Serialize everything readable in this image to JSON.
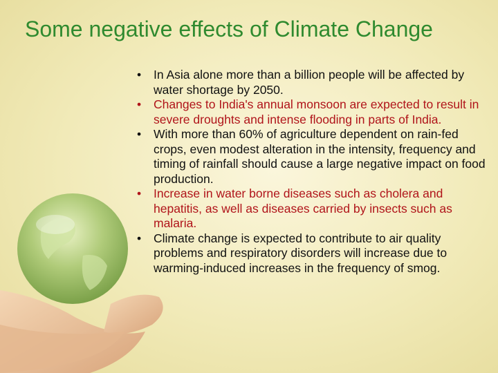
{
  "slide": {
    "title": "Some negative effects of Climate Change",
    "bullet_char": "•",
    "bullets": [
      {
        "text": "In Asia alone more than a billion people will be affected by water shortage by 2050."
      },
      {
        "text": "Changes to India's annual monsoon are expected to result in severe droughts and intense flooding in parts of India."
      },
      {
        "text": "With more than 60% of agriculture dependent on rain-fed crops, even modest alteration in the intensity, frequency and timing of rainfall should cause a large negative impact on food production."
      },
      {
        "text": "Increase in water borne diseases such as cholera and hepatitis, as well as diseases carried by insects such as malaria."
      },
      {
        "text": "Climate change is expected to contribute to air quality problems and respiratory disorders will increase due to warming-induced increases in the frequency of smog."
      }
    ],
    "colors": {
      "title": "#2f8a2f",
      "text_dark": "#111111",
      "text_red": "#b0141a"
    },
    "image_icon": "globe-in-hands-icon"
  }
}
